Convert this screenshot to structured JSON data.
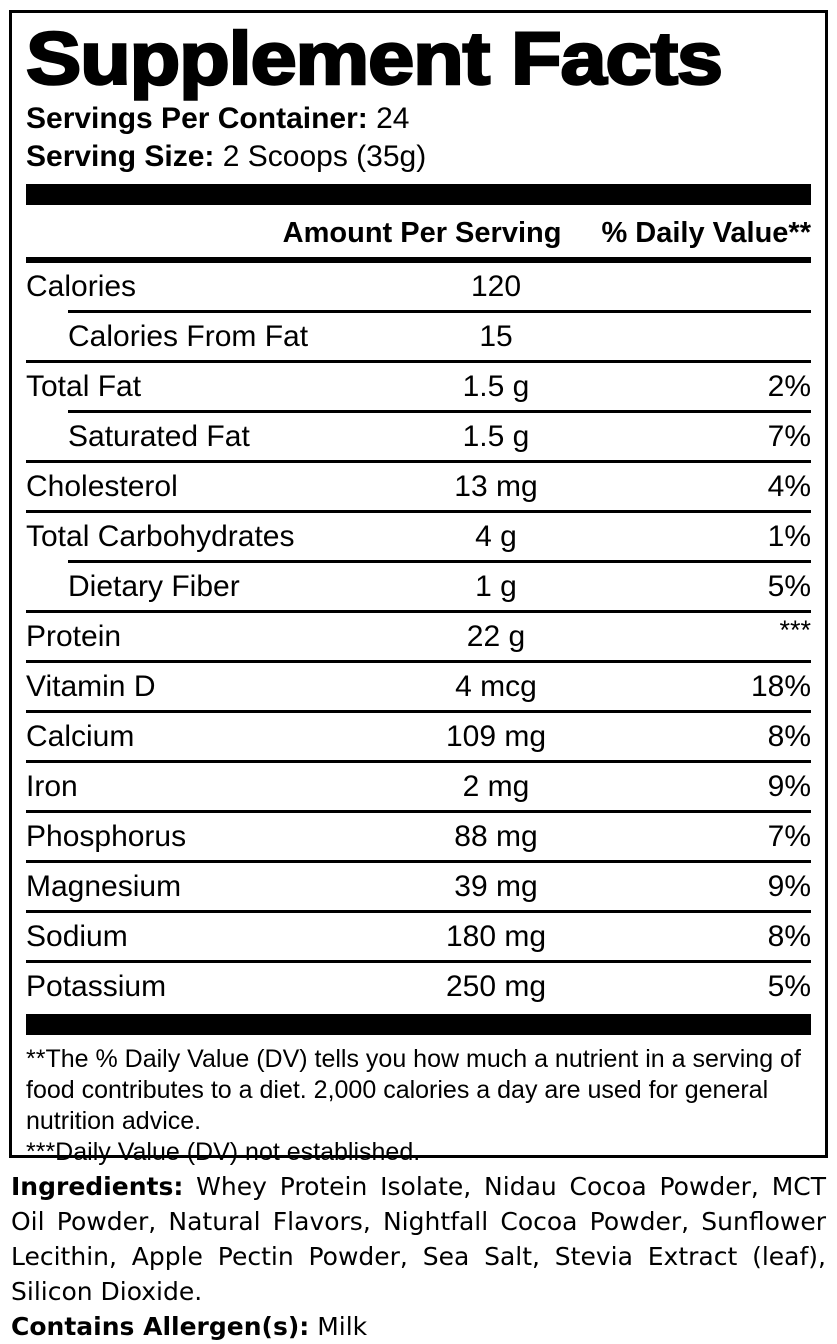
{
  "label": {
    "title": "Supplement Facts",
    "servings_per_container_label": "Servings Per Container:",
    "servings_per_container_value": "24",
    "serving_size_label": "Serving Size:",
    "serving_size_value": "2 Scoops (35g)",
    "columns": {
      "amount": "Amount Per Serving",
      "daily_value": "% Daily Value**"
    },
    "rows": [
      {
        "label": "Calories",
        "amount": "120",
        "dv": "",
        "indent": false,
        "rule": "none"
      },
      {
        "label": "Calories From Fat",
        "amount": "15",
        "dv": "",
        "indent": true,
        "rule": "indent"
      },
      {
        "label": "Total Fat",
        "amount": "1.5 g",
        "dv": "2%",
        "indent": false,
        "rule": "full"
      },
      {
        "label": "Saturated Fat",
        "amount": "1.5 g",
        "dv": "7%",
        "indent": true,
        "rule": "indent"
      },
      {
        "label": "Cholesterol",
        "amount": "13 mg",
        "dv": "4%",
        "indent": false,
        "rule": "full"
      },
      {
        "label": "Total Carbohydrates",
        "amount": "4 g",
        "dv": "1%",
        "indent": false,
        "rule": "full"
      },
      {
        "label": "Dietary Fiber",
        "amount": "1 g",
        "dv": "5%",
        "indent": true,
        "rule": "indent"
      },
      {
        "label": "Protein",
        "amount": "22 g",
        "dv": "***",
        "indent": false,
        "rule": "full"
      },
      {
        "label": "Vitamin D",
        "amount": "4 mcg",
        "dv": "18%",
        "indent": false,
        "rule": "full"
      },
      {
        "label": "Calcium",
        "amount": "109 mg",
        "dv": "8%",
        "indent": false,
        "rule": "full"
      },
      {
        "label": "Iron",
        "amount": "2 mg",
        "dv": "9%",
        "indent": false,
        "rule": "full"
      },
      {
        "label": "Phosphorus",
        "amount": "88 mg",
        "dv": "7%",
        "indent": false,
        "rule": "full"
      },
      {
        "label": "Magnesium",
        "amount": "39 mg",
        "dv": "9%",
        "indent": false,
        "rule": "full"
      },
      {
        "label": "Sodium",
        "amount": "180 mg",
        "dv": "8%",
        "indent": false,
        "rule": "full"
      },
      {
        "label": "Potassium",
        "amount": "250 mg",
        "dv": "5%",
        "indent": false,
        "rule": "full"
      }
    ],
    "footnotes": [
      "**The % Daily Value (DV) tells you how much a nutrient in a serving of food contributes to a diet. 2,000 calories a day are used for general nutrition advice.",
      "***Daily Value (DV) not established."
    ],
    "ingredients_label": "Ingredients:",
    "ingredients_text": " Whey Protein Isolate, Nidau Cocoa Powder, MCT Oil Powder, Natural Flavors, Nightfall Cocoa Powder, Sunflower Lecithin, Apple Pectin Powder, Sea Salt, Stevia Extract (leaf), Silicon Dioxide.",
    "allergen_label": "Contains Allergen(s):",
    "allergen_value": " Milk",
    "colors": {
      "ink": "#000000",
      "background": "#ffffff"
    }
  }
}
